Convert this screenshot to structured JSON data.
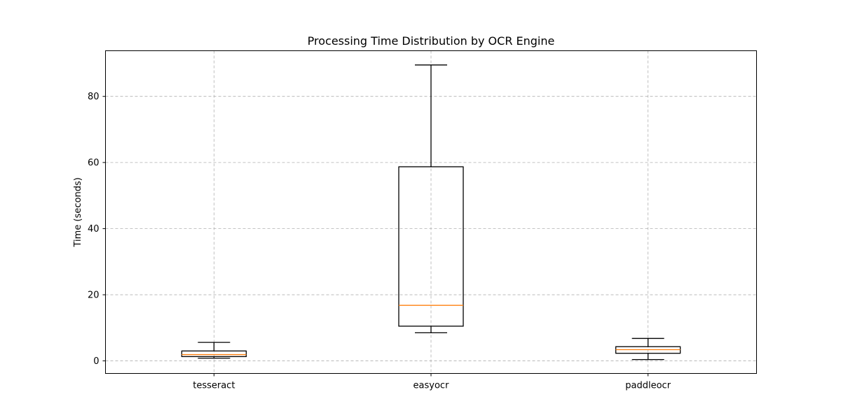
{
  "chart_data": {
    "type": "box",
    "title": "Processing Time Distribution by OCR Engine",
    "xlabel": "",
    "ylabel": "Time (seconds)",
    "ylim": [
      -3.8,
      93.8
    ],
    "yticks": [
      0,
      20,
      40,
      60,
      80
    ],
    "grid": true,
    "median_color": "#ff7f0e",
    "box_color": "#000000",
    "categories": [
      "tesseract",
      "easyocr",
      "paddleocr"
    ],
    "boxes": [
      {
        "label": "tesseract",
        "whisker_low": 0.8,
        "q1": 1.3,
        "median": 1.9,
        "q3": 3.0,
        "whisker_high": 5.6
      },
      {
        "label": "easyocr",
        "whisker_low": 8.5,
        "q1": 10.5,
        "median": 16.8,
        "q3": 58.7,
        "whisker_high": 89.5
      },
      {
        "label": "paddleocr",
        "whisker_low": 0.4,
        "q1": 2.3,
        "median": 3.4,
        "q3": 4.3,
        "whisker_high": 6.8
      }
    ]
  }
}
